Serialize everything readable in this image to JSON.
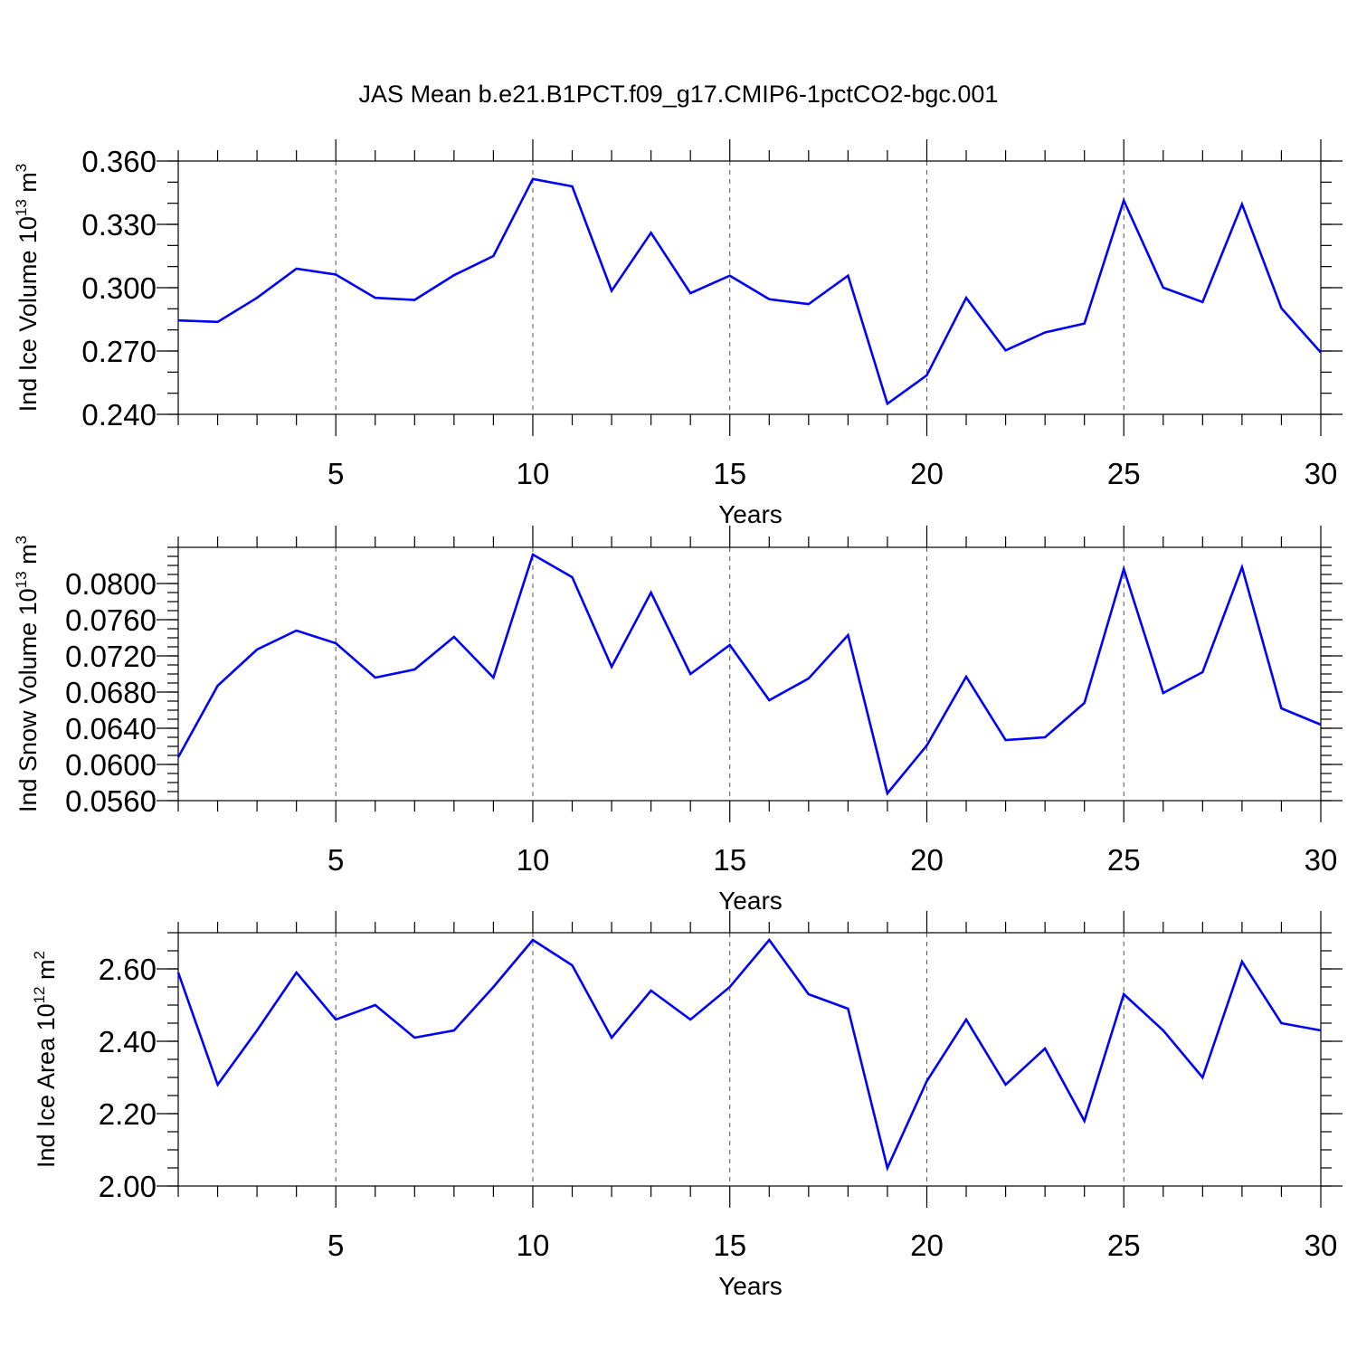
{
  "figure_title": "JAS Mean b.e21.B1PCT.f09_g17.CMIP6-1pctCO2-bgc.001",
  "line_color": "#0000ff",
  "chart_data": [
    {
      "type": "line",
      "ylabel_main": "Ind Ice Volume 10",
      "ylabel_exp": "13",
      "ylabel_unit": "m",
      "ylabel_unit_exp": "3",
      "xlabel": "Years",
      "xlim": [
        1,
        30
      ],
      "ylim": [
        0.24,
        0.36
      ],
      "yticks": [
        "0.360",
        "0.330",
        "0.300",
        "0.270",
        "0.240"
      ],
      "ytick_values": [
        0.36,
        0.33,
        0.3,
        0.27,
        0.24
      ],
      "yminor_step": 0.01,
      "xticks": [
        "5",
        "10",
        "15",
        "20",
        "25",
        "30"
      ],
      "xtick_values": [
        5,
        10,
        15,
        20,
        25,
        30
      ],
      "grid": "dashed vertical at major x ticks",
      "x": [
        1,
        2,
        3,
        4,
        5,
        6,
        7,
        8,
        9,
        10,
        11,
        12,
        13,
        14,
        15,
        16,
        17,
        18,
        19,
        20,
        21,
        22,
        23,
        24,
        25,
        26,
        27,
        28,
        29,
        30
      ],
      "values": [
        0.2845,
        0.2838,
        0.2952,
        0.309,
        0.3062,
        0.2952,
        0.2942,
        0.3059,
        0.315,
        0.3515,
        0.348,
        0.2985,
        0.326,
        0.2974,
        0.3057,
        0.2945,
        0.2922,
        0.3057,
        0.245,
        0.2585,
        0.2952,
        0.2703,
        0.2788,
        0.283,
        0.3413,
        0.3,
        0.2932,
        0.3395,
        0.2903,
        0.2693
      ]
    },
    {
      "type": "line",
      "ylabel_main": "Ind Snow Volume 10",
      "ylabel_exp": "13",
      "ylabel_unit": "m",
      "ylabel_unit_exp": "3",
      "xlabel": "Years",
      "xlim": [
        1,
        30
      ],
      "ylim": [
        0.056,
        0.084
      ],
      "yticks": [
        "0.0800",
        "0.0760",
        "0.0720",
        "0.0680",
        "0.0640",
        "0.0600",
        "0.0560"
      ],
      "ytick_values": [
        0.08,
        0.076,
        0.072,
        0.068,
        0.064,
        0.06,
        0.056
      ],
      "yminor_step": 0.001,
      "xticks": [
        "5",
        "10",
        "15",
        "20",
        "25",
        "30"
      ],
      "xtick_values": [
        5,
        10,
        15,
        20,
        25,
        30
      ],
      "grid": "dashed vertical at major x ticks",
      "x": [
        1,
        2,
        3,
        4,
        5,
        6,
        7,
        8,
        9,
        10,
        11,
        12,
        13,
        14,
        15,
        16,
        17,
        18,
        19,
        20,
        21,
        22,
        23,
        24,
        25,
        26,
        27,
        28,
        29,
        30
      ],
      "values": [
        0.0608,
        0.0687,
        0.0727,
        0.0748,
        0.0734,
        0.0696,
        0.0705,
        0.0741,
        0.0696,
        0.0832,
        0.0807,
        0.0708,
        0.079,
        0.07,
        0.0732,
        0.0671,
        0.0695,
        0.0743,
        0.0568,
        0.0621,
        0.0697,
        0.0627,
        0.063,
        0.0668,
        0.0816,
        0.0679,
        0.0702,
        0.0818,
        0.0662,
        0.0644
      ]
    },
    {
      "type": "line",
      "ylabel_main": "Ind Ice Area 10",
      "ylabel_exp": "12",
      "ylabel_unit": "m",
      "ylabel_unit_exp": "2",
      "xlabel": "Years",
      "xlim": [
        1,
        30
      ],
      "ylim": [
        2.0,
        2.7
      ],
      "yticks": [
        "2.60",
        "2.40",
        "2.20",
        "2.00"
      ],
      "ytick_values": [
        2.6,
        2.4,
        2.2,
        2.0
      ],
      "yminor_step": 0.05,
      "xticks": [
        "5",
        "10",
        "15",
        "20",
        "25",
        "30"
      ],
      "xtick_values": [
        5,
        10,
        15,
        20,
        25,
        30
      ],
      "grid": "dashed vertical at major x ticks",
      "x": [
        1,
        2,
        3,
        4,
        5,
        6,
        7,
        8,
        9,
        10,
        11,
        12,
        13,
        14,
        15,
        16,
        17,
        18,
        19,
        20,
        21,
        22,
        23,
        24,
        25,
        26,
        27,
        28,
        29,
        30
      ],
      "values": [
        2.59,
        2.28,
        2.43,
        2.59,
        2.46,
        2.5,
        2.41,
        2.43,
        2.55,
        2.68,
        2.61,
        2.41,
        2.54,
        2.46,
        2.55,
        2.68,
        2.53,
        2.49,
        2.05,
        2.29,
        2.46,
        2.28,
        2.38,
        2.18,
        2.53,
        2.43,
        2.3,
        2.62,
        2.45,
        2.43
      ]
    }
  ]
}
